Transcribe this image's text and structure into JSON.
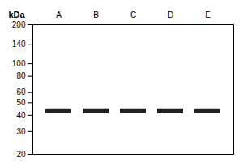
{
  "chart_data": {
    "type": "band",
    "categories": [
      "A",
      "B",
      "C",
      "D",
      "E"
    ],
    "values": [
      43,
      43,
      43,
      43,
      43
    ],
    "band_height": 4.0,
    "color": "#222222",
    "y_label": "kDa",
    "log": "y",
    "ylim": [
      20,
      200
    ],
    "yticks": [
      200,
      140,
      100,
      80,
      60,
      50,
      40,
      30,
      20
    ],
    "grid": false
  }
}
